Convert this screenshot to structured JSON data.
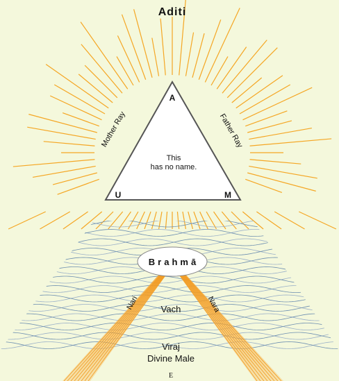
{
  "title": "Aditi",
  "triangle": {
    "top": "A",
    "left": "U",
    "right": "M",
    "center": [
      "This",
      "has no name."
    ]
  },
  "rays": {
    "left": "Mother Ray",
    "right": "Father Ray"
  },
  "ellipse": "Brahmā",
  "beams": {
    "left": "Nari",
    "right": "Nara"
  },
  "labels": {
    "middle": "Vach",
    "bottom": [
      "Viraj",
      "Divine Male"
    ]
  },
  "footer": "E"
}
